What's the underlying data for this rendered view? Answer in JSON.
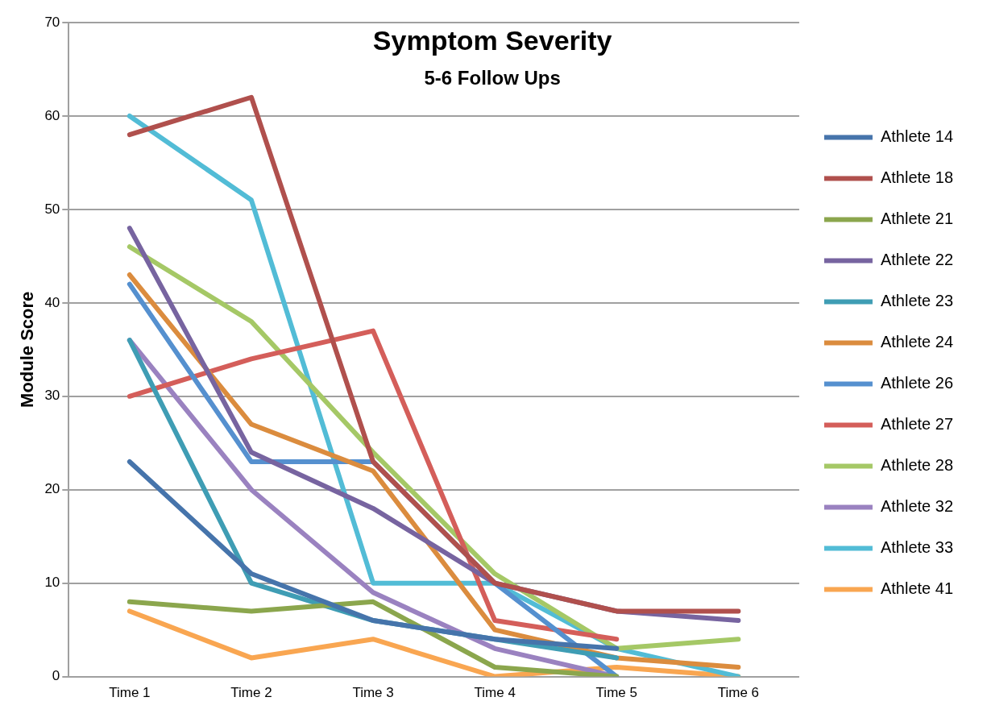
{
  "chart_data": {
    "type": "line",
    "title": "Symptom Severity",
    "subtitle": "5-6 Follow Ups",
    "ylabel": "Module Score",
    "categories": [
      "Time 1",
      "Time 2",
      "Time 3",
      "Time 4",
      "Time 5",
      "Time 6"
    ],
    "ylim": [
      0,
      70
    ],
    "yticks": [
      0,
      10,
      20,
      30,
      40,
      50,
      60,
      70
    ],
    "grid": "y",
    "legend": "right",
    "marker": "none",
    "line_style": "solid",
    "series": [
      {
        "name": "Athlete 14",
        "color": "#4674ab",
        "values": [
          23,
          11,
          6,
          4,
          3,
          null
        ]
      },
      {
        "name": "Athlete 18",
        "color": "#b0504d",
        "values": [
          58,
          62,
          23,
          10,
          7,
          7
        ]
      },
      {
        "name": "Athlete 21",
        "color": "#8ba64d",
        "values": [
          8,
          7,
          8,
          1,
          0,
          null
        ]
      },
      {
        "name": "Athlete 22",
        "color": "#7764a0",
        "values": [
          48,
          24,
          18,
          10,
          7,
          6
        ]
      },
      {
        "name": "Athlete 23",
        "color": "#3f9db4",
        "values": [
          36,
          10,
          6,
          4,
          2,
          null
        ]
      },
      {
        "name": "Athlete 24",
        "color": "#db8c3e",
        "values": [
          43,
          27,
          22,
          5,
          2,
          1
        ]
      },
      {
        "name": "Athlete 26",
        "color": "#5590cf",
        "values": [
          42,
          23,
          23,
          10,
          0,
          null
        ]
      },
      {
        "name": "Athlete 27",
        "color": "#d45e5a",
        "values": [
          30,
          34,
          37,
          6,
          4,
          null
        ]
      },
      {
        "name": "Athlete 28",
        "color": "#a5c866",
        "values": [
          46,
          38,
          24,
          11,
          3,
          4
        ]
      },
      {
        "name": "Athlete 32",
        "color": "#9a82c0",
        "values": [
          36,
          20,
          9,
          3,
          0,
          null
        ]
      },
      {
        "name": "Athlete 33",
        "color": "#52bcd6",
        "values": [
          60,
          51,
          10,
          10,
          3,
          0
        ]
      },
      {
        "name": "Athlete 41",
        "color": "#f9a651",
        "values": [
          7,
          2,
          4,
          0,
          1,
          0
        ]
      }
    ]
  }
}
